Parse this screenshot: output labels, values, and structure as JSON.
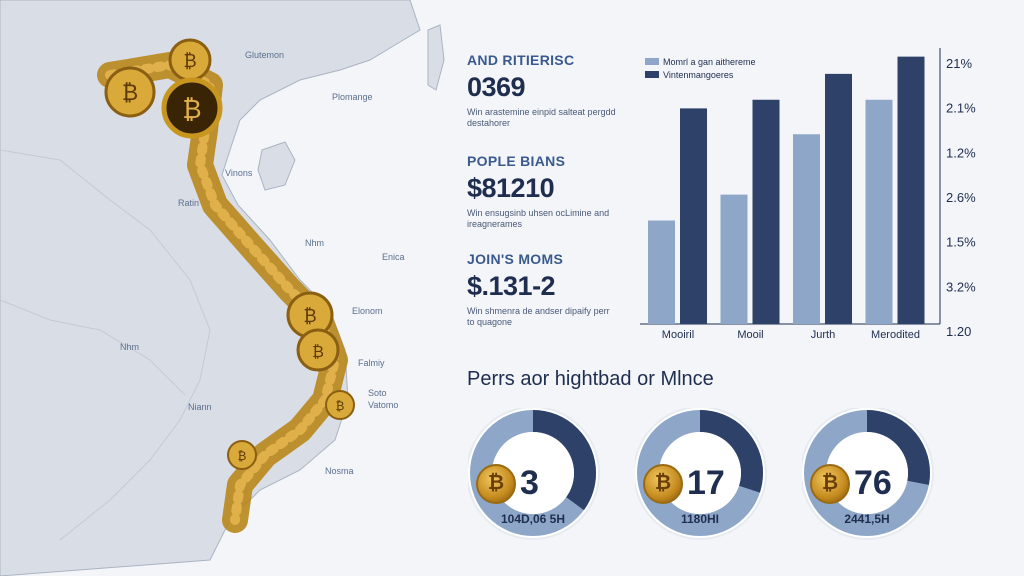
{
  "map": {
    "labels": [
      {
        "id": "l1",
        "text": "Glutemon"
      },
      {
        "id": "l2",
        "text": "Plomange"
      },
      {
        "id": "l3",
        "text": "Vinons"
      },
      {
        "id": "l4",
        "text": "Ratin"
      },
      {
        "id": "l5",
        "text": "Nhm"
      },
      {
        "id": "l6",
        "text": "Enica"
      },
      {
        "id": "l7",
        "text": "Elonom"
      },
      {
        "id": "l8",
        "text": "Nhm"
      },
      {
        "id": "l9",
        "text": "Falmiy"
      },
      {
        "id": "l10",
        "text": "Soto"
      },
      {
        "id": "l11",
        "text": "Vatomo"
      },
      {
        "id": "l12",
        "text": "Niann"
      },
      {
        "id": "l13",
        "text": "Nosma"
      }
    ],
    "colors": {
      "land": "#d9dee6",
      "land_border": "#aab3c2",
      "sea": "#f3f5f9",
      "coin": "#c8951f"
    }
  },
  "stats": [
    {
      "title": "AND RITIERISC",
      "value": "0369",
      "desc": "Win arastemine einpid salteat pergdd destahorer"
    },
    {
      "title": "POPLE BIANS",
      "value": "$81210",
      "desc": "Win ensugsinb uhsen ocLimine and ireagnerames"
    },
    {
      "title": "JOIN'S MOMS",
      "value": "$.131-2",
      "desc": "Win shmenra de andser dipaify perr to quagone"
    }
  ],
  "chart_data": {
    "type": "bar",
    "categories": [
      "Mooiril",
      "Mooil",
      "Jurth",
      "Merodited"
    ],
    "series": [
      {
        "name": "Momrl a gan aithereme",
        "color": "#8ea7c8",
        "values": [
          1.2,
          1.5,
          2.2,
          2.6
        ]
      },
      {
        "name": "Vintenmangoeres",
        "color": "#2e4168",
        "values": [
          2.5,
          2.6,
          2.9,
          3.1
        ]
      }
    ],
    "ticks": [
      "21%",
      "2.1%",
      "1.2%",
      "2.6%",
      "1.5%",
      "3.2%",
      "1.20"
    ],
    "legend_position": "top-left"
  },
  "donuts_title": "Perrs aor hightbad or Mlnce",
  "donuts": [
    {
      "value": "3",
      "sub": "104D,06 5H",
      "share": 0.35
    },
    {
      "value": "17",
      "sub": "1180HI",
      "share": 0.3
    },
    {
      "value": "76",
      "sub": "2441,5H",
      "share": 0.28
    }
  ],
  "donut_colors": {
    "dark": "#2e4168",
    "light": "#8ea7c8",
    "pale": "#e4e9f1"
  }
}
